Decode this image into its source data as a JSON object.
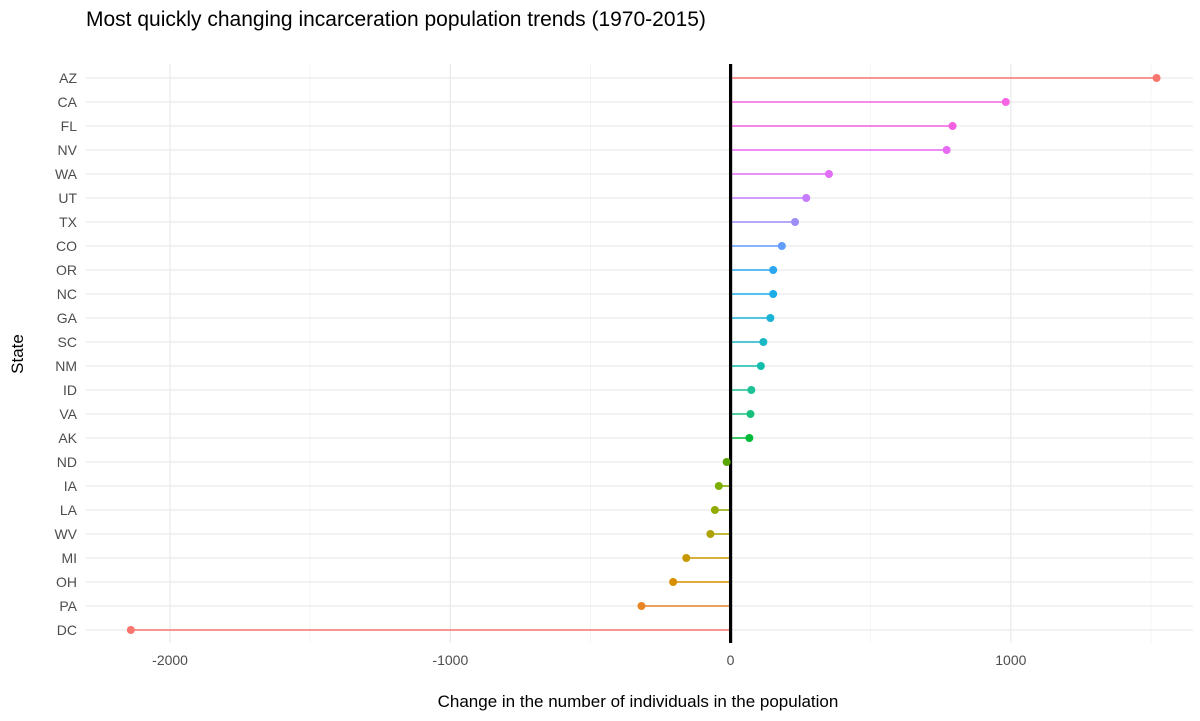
{
  "chart_data": {
    "type": "lollipop",
    "title": "Most quickly changing incarceration population trends (1970-2015)",
    "xlabel": "Change in the number of individuals in the population",
    "ylabel": "State",
    "xlim": [
      -2300,
      1650
    ],
    "x_ticks": [
      -2000,
      -1000,
      0,
      1000
    ],
    "x_tick_labels": [
      "-2000",
      "-1000",
      "0",
      "1000"
    ],
    "zero_line": 0,
    "grid": true,
    "legend": "none",
    "points": [
      {
        "state": "AZ",
        "value": 1520,
        "color": "#f8766d"
      },
      {
        "state": "CA",
        "value": 982,
        "color": "#f564e3"
      },
      {
        "state": "FL",
        "value": 792,
        "color": "#f160e0"
      },
      {
        "state": "NV",
        "value": 771,
        "color": "#e76bf3"
      },
      {
        "state": "WA",
        "value": 351,
        "color": "#e36ef6"
      },
      {
        "state": "UT",
        "value": 270,
        "color": "#c77cff"
      },
      {
        "state": "TX",
        "value": 230,
        "color": "#9d8df8"
      },
      {
        "state": "CO",
        "value": 183,
        "color": "#619cff"
      },
      {
        "state": "OR",
        "value": 152,
        "color": "#2aa7f0"
      },
      {
        "state": "NC",
        "value": 152,
        "color": "#1cace8"
      },
      {
        "state": "GA",
        "value": 142,
        "color": "#1bb2d8"
      },
      {
        "state": "SC",
        "value": 117,
        "color": "#1ab8c4"
      },
      {
        "state": "NM",
        "value": 108,
        "color": "#12bdad"
      },
      {
        "state": "ID",
        "value": 74,
        "color": "#1dc296"
      },
      {
        "state": "VA",
        "value": 71,
        "color": "#17c17d"
      },
      {
        "state": "AK",
        "value": 67,
        "color": "#00ba38"
      },
      {
        "state": "ND",
        "value": -14,
        "color": "#58a700"
      },
      {
        "state": "IA",
        "value": -42,
        "color": "#7cae00"
      },
      {
        "state": "LA",
        "value": -56,
        "color": "#93aa00"
      },
      {
        "state": "WV",
        "value": -72,
        "color": "#aea200"
      },
      {
        "state": "MI",
        "value": -158,
        "color": "#c99800"
      },
      {
        "state": "OH",
        "value": -205,
        "color": "#d89000"
      },
      {
        "state": "PA",
        "value": -318,
        "color": "#e88526"
      },
      {
        "state": "DC",
        "value": -2140,
        "color": "#f8766d"
      }
    ]
  }
}
